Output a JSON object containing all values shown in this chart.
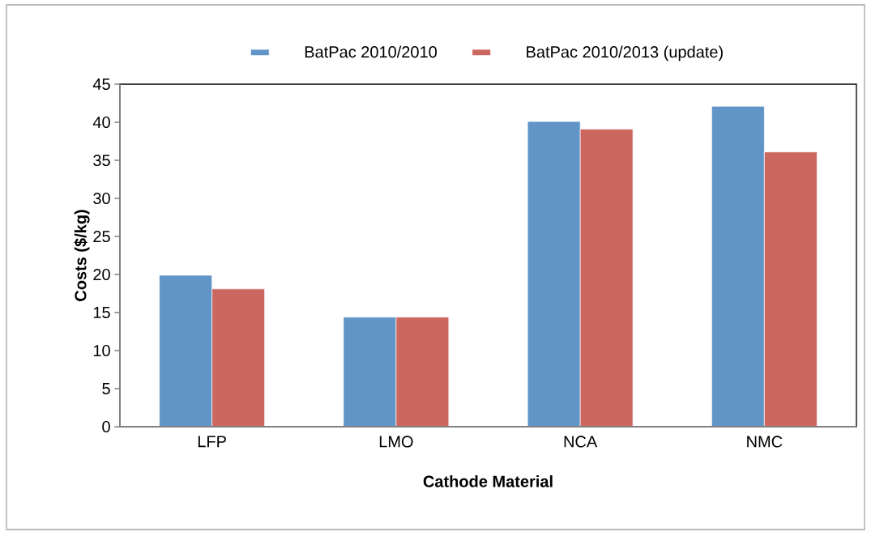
{
  "chart_data": {
    "type": "bar",
    "xlabel": "Cathode Material",
    "ylabel": "Costs ($/kg)",
    "categories": [
      "LFP",
      "LMO",
      "NCA",
      "NMC"
    ],
    "series": [
      {
        "name": "BatPac 2010/2010",
        "color": "#6195c7",
        "values": [
          19.9,
          14.4,
          40.1,
          42.1
        ]
      },
      {
        "name": "BatPac 2010/2013 (update)",
        "color": "#cc6760",
        "values": [
          18.1,
          14.4,
          39.1,
          36.1
        ]
      }
    ],
    "ylim": [
      0,
      45
    ],
    "yticks": [
      0,
      5,
      10,
      15,
      20,
      25,
      30,
      35,
      40,
      45
    ],
    "grid": false,
    "legend": "top"
  }
}
